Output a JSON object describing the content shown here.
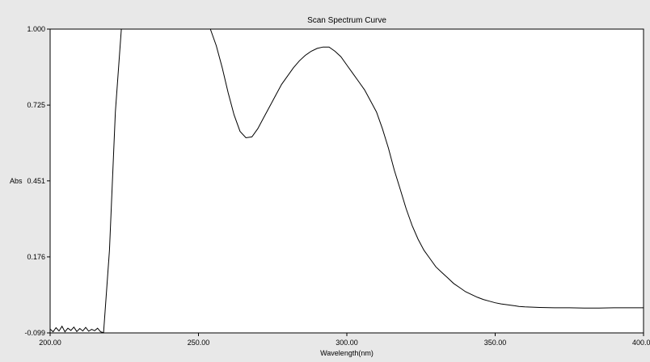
{
  "chart_data": {
    "type": "line",
    "title": "Scan Spectrum Curve",
    "xlabel": "Wavelength(nm)",
    "ylabel": "Abs",
    "xlim": [
      200,
      400
    ],
    "ylim": [
      -0.099,
      1.0
    ],
    "x_ticks": [
      "200.00",
      "250.00",
      "300.00",
      "350.00",
      "400.0"
    ],
    "y_ticks": [
      "1.000",
      "0.725",
      "0.451",
      "0.176",
      "-0.099"
    ],
    "grid": false,
    "series": [
      {
        "x": [
          200,
          201,
          202,
          203,
          204,
          205,
          206,
          207,
          208,
          209,
          210,
          211,
          212,
          213,
          214,
          215,
          216,
          217,
          218,
          220,
          222,
          224,
          226,
          228,
          230,
          235,
          240,
          245,
          250,
          252,
          254,
          256,
          258,
          260,
          262,
          264,
          266,
          268,
          270,
          272,
          274,
          276,
          278,
          280,
          282,
          284,
          286,
          288,
          290,
          292,
          294,
          296,
          298,
          300,
          302,
          304,
          306,
          308,
          310,
          312,
          314,
          316,
          318,
          320,
          322,
          324,
          326,
          328,
          330,
          332,
          334,
          336,
          338,
          340,
          342,
          344,
          346,
          348,
          350,
          352,
          354,
          356,
          358,
          360,
          365,
          370,
          375,
          380,
          385,
          390,
          395,
          400
        ],
        "y": [
          -0.085,
          -0.095,
          -0.08,
          -0.092,
          -0.075,
          -0.095,
          -0.082,
          -0.09,
          -0.078,
          -0.094,
          -0.083,
          -0.092,
          -0.079,
          -0.093,
          -0.086,
          -0.091,
          -0.082,
          -0.095,
          -0.098,
          0.2,
          0.7,
          1.0,
          1.0,
          1.0,
          1.0,
          1.0,
          1.0,
          1.0,
          1.0,
          1.0,
          1.0,
          0.94,
          0.86,
          0.77,
          0.69,
          0.63,
          0.607,
          0.61,
          0.64,
          0.68,
          0.72,
          0.76,
          0.8,
          0.83,
          0.86,
          0.885,
          0.905,
          0.92,
          0.93,
          0.935,
          0.935,
          0.92,
          0.9,
          0.87,
          0.84,
          0.81,
          0.78,
          0.74,
          0.7,
          0.64,
          0.57,
          0.49,
          0.42,
          0.35,
          0.29,
          0.24,
          0.2,
          0.17,
          0.14,
          0.12,
          0.1,
          0.08,
          0.065,
          0.05,
          0.04,
          0.03,
          0.022,
          0.016,
          0.01,
          0.006,
          0.003,
          0.0,
          -0.003,
          -0.005,
          -0.007,
          -0.008,
          -0.008,
          -0.009,
          -0.009,
          -0.008,
          -0.008,
          -0.008
        ]
      }
    ]
  }
}
